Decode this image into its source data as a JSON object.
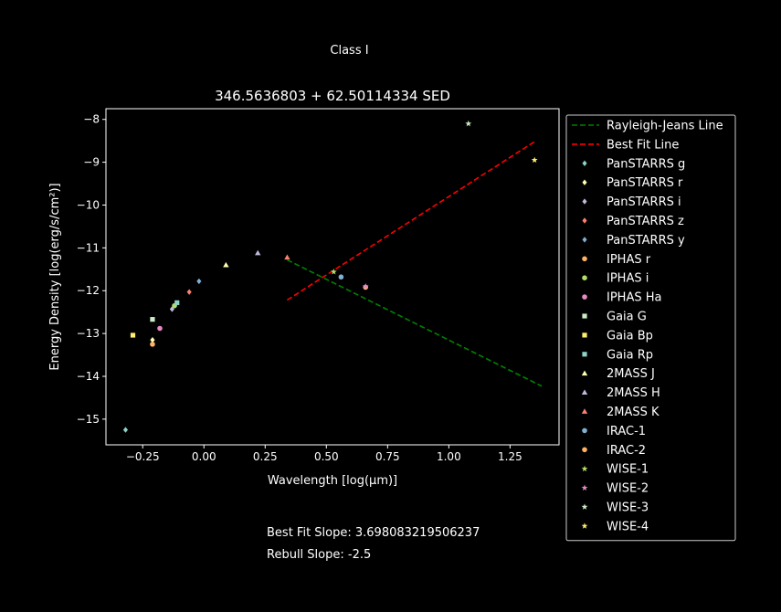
{
  "figure": {
    "suptitle": "Class I",
    "best_fit_text": "Best Fit Slope: 3.698083219506237",
    "rebull_text": "Rebull Slope: -2.5"
  },
  "chart_data": {
    "type": "scatter",
    "title": "346.5636803 + 62.50114334 SED",
    "xlabel": "Wavelength [log(μm)]",
    "ylabel": "Energy Density [log(erg/s/cm²)]",
    "xlim": [
      -0.4,
      1.45
    ],
    "ylim": [
      -15.6,
      -7.75
    ],
    "xticks": [
      -0.25,
      0.0,
      0.25,
      0.5,
      0.75,
      1.0,
      1.25
    ],
    "xtick_labels": [
      "−0.25",
      "0.00",
      "0.25",
      "0.50",
      "0.75",
      "1.00",
      "1.25"
    ],
    "yticks": [
      -15,
      -14,
      -13,
      -12,
      -11,
      -10,
      -9,
      -8
    ],
    "ytick_labels": [
      "−15",
      "−14",
      "−13",
      "−12",
      "−11",
      "−10",
      "−9",
      "−8"
    ],
    "grid": false,
    "legend_position": "outside-right",
    "lines": [
      {
        "name": "Rayleigh-Jeans Line",
        "color": "#008000",
        "dash": true,
        "x": [
          0.34,
          1.38
        ],
        "y": [
          -11.28,
          -14.23
        ]
      },
      {
        "name": "Best Fit Line",
        "color": "#ff0000",
        "dash": true,
        "x": [
          0.34,
          1.35
        ],
        "y": [
          -12.22,
          -8.52
        ]
      }
    ],
    "series": [
      {
        "name": "PanSTARRS g",
        "marker": "diamond",
        "color": "#8dd3c7",
        "x": [
          -0.32
        ],
        "y": [
          -15.25
        ]
      },
      {
        "name": "PanSTARRS r",
        "marker": "diamond",
        "color": "#ffffb3",
        "x": [
          -0.21
        ],
        "y": [
          -13.15
        ]
      },
      {
        "name": "PanSTARRS i",
        "marker": "diamond",
        "color": "#bebada",
        "x": [
          -0.13
        ],
        "y": [
          -12.43
        ]
      },
      {
        "name": "PanSTARRS z",
        "marker": "diamond",
        "color": "#fb8072",
        "x": [
          -0.06
        ],
        "y": [
          -12.03
        ]
      },
      {
        "name": "PanSTARRS y",
        "marker": "diamond",
        "color": "#80b1d3",
        "x": [
          -0.02
        ],
        "y": [
          -11.78
        ]
      },
      {
        "name": "IPHAS r",
        "marker": "circle",
        "color": "#fdb462",
        "x": [
          -0.21
        ],
        "y": [
          -13.25
        ]
      },
      {
        "name": "IPHAS i",
        "marker": "circle",
        "color": "#b3de69",
        "x": [
          -0.12
        ],
        "y": [
          -12.35
        ]
      },
      {
        "name": "IPHAS Ha",
        "marker": "circle",
        "color": "#e78ac3",
        "x": [
          -0.18
        ],
        "y": [
          -12.88
        ]
      },
      {
        "name": "Gaia G",
        "marker": "square",
        "color": "#ccebc5",
        "x": [
          -0.21
        ],
        "y": [
          -12.67
        ]
      },
      {
        "name": "Gaia Bp",
        "marker": "square",
        "color": "#ffed6f",
        "x": [
          -0.29
        ],
        "y": [
          -13.04
        ]
      },
      {
        "name": "Gaia Rp",
        "marker": "square",
        "color": "#8dd3c7",
        "x": [
          -0.11
        ],
        "y": [
          -12.28
        ]
      },
      {
        "name": "2MASS J",
        "marker": "triangle",
        "color": "#ffffb3",
        "x": [
          0.09
        ],
        "y": [
          -11.4
        ]
      },
      {
        "name": "2MASS H",
        "marker": "triangle",
        "color": "#bebada",
        "x": [
          0.22
        ],
        "y": [
          -11.12
        ]
      },
      {
        "name": "2MASS K",
        "marker": "triangle",
        "color": "#fb8072",
        "x": [
          0.34
        ],
        "y": [
          -11.22
        ]
      },
      {
        "name": "IRAC-1",
        "marker": "circle",
        "color": "#80b1d3",
        "x": [
          0.56
        ],
        "y": [
          -11.68
        ]
      },
      {
        "name": "IRAC-2",
        "marker": "circle",
        "color": "#fdb462",
        "x": [
          0.66
        ],
        "y": [
          -11.92
        ]
      },
      {
        "name": "WISE-1",
        "marker": "star",
        "color": "#b3de69",
        "x": [
          0.53
        ],
        "y": [
          -11.56
        ]
      },
      {
        "name": "WISE-2",
        "marker": "star",
        "color": "#e78ac3",
        "x": [
          0.66
        ],
        "y": [
          -11.9
        ]
      },
      {
        "name": "WISE-3",
        "marker": "star",
        "color": "#ccebc5",
        "x": [
          1.08
        ],
        "y": [
          -8.1
        ]
      },
      {
        "name": "WISE-4",
        "marker": "star",
        "color": "#ffed6f",
        "x": [
          1.35
        ],
        "y": [
          -8.95
        ]
      }
    ]
  }
}
